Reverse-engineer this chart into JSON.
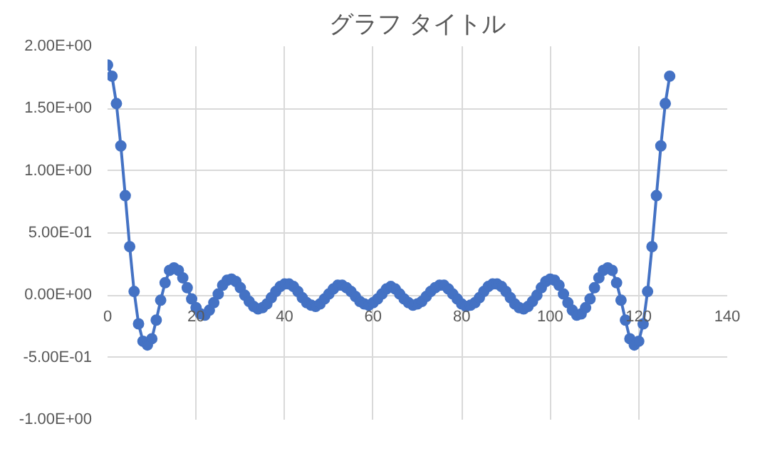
{
  "chart_data": {
    "type": "line",
    "title": "グラフ タイトル",
    "x": [
      0,
      1,
      2,
      3,
      4,
      5,
      6,
      7,
      8,
      9,
      10,
      11,
      12,
      13,
      14,
      15,
      16,
      17,
      18,
      19,
      20,
      21,
      22,
      23,
      24,
      25,
      26,
      27,
      28,
      29,
      30,
      31,
      32,
      33,
      34,
      35,
      36,
      37,
      38,
      39,
      40,
      41,
      42,
      43,
      44,
      45,
      46,
      47,
      48,
      49,
      50,
      51,
      52,
      53,
      54,
      55,
      56,
      57,
      58,
      59,
      60,
      61,
      62,
      63,
      64,
      65,
      66,
      67,
      68,
      69,
      70,
      71,
      72,
      73,
      74,
      75,
      76,
      77,
      78,
      79,
      80,
      81,
      82,
      83,
      84,
      85,
      86,
      87,
      88,
      89,
      90,
      91,
      92,
      93,
      94,
      95,
      96,
      97,
      98,
      99,
      100,
      101,
      102,
      103,
      104,
      105,
      106,
      107,
      108,
      109,
      110,
      111,
      112,
      113,
      114,
      115,
      116,
      117,
      118,
      119,
      120,
      121,
      122,
      123,
      124,
      125,
      126,
      127
    ],
    "series": [
      {
        "color": "#4472c4",
        "values": [
          1.85,
          1.76,
          1.54,
          1.2,
          0.8,
          0.39,
          0.03,
          -0.23,
          -0.37,
          -0.4,
          -0.35,
          -0.2,
          -0.04,
          0.1,
          0.2,
          0.22,
          0.2,
          0.14,
          0.06,
          -0.03,
          -0.1,
          -0.15,
          -0.16,
          -0.12,
          -0.06,
          0.01,
          0.08,
          0.12,
          0.13,
          0.11,
          0.06,
          0.0,
          -0.05,
          -0.09,
          -0.11,
          -0.1,
          -0.07,
          -0.02,
          0.03,
          0.07,
          0.09,
          0.09,
          0.07,
          0.03,
          -0.02,
          -0.06,
          -0.08,
          -0.09,
          -0.07,
          -0.03,
          0.01,
          0.05,
          0.08,
          0.08,
          0.06,
          0.03,
          -0.01,
          -0.05,
          -0.07,
          -0.08,
          -0.06,
          -0.03,
          0.01,
          0.05,
          0.07,
          0.05,
          0.01,
          -0.03,
          -0.06,
          -0.08,
          -0.07,
          -0.05,
          -0.01,
          0.03,
          0.06,
          0.08,
          0.08,
          0.05,
          0.01,
          -0.03,
          -0.07,
          -0.09,
          -0.08,
          -0.06,
          -0.02,
          0.03,
          0.07,
          0.09,
          0.09,
          0.07,
          0.03,
          -0.02,
          -0.07,
          -0.1,
          -0.11,
          -0.09,
          -0.05,
          0.0,
          0.06,
          0.11,
          0.13,
          0.12,
          0.08,
          0.01,
          -0.06,
          -0.12,
          -0.16,
          -0.15,
          -0.1,
          -0.03,
          0.06,
          0.14,
          0.2,
          0.22,
          0.2,
          0.1,
          -0.04,
          -0.2,
          -0.35,
          -0.4,
          -0.37,
          -0.23,
          0.03,
          0.39,
          0.8,
          1.2,
          1.54,
          1.76
        ]
      }
    ],
    "xlim": [
      0,
      140
    ],
    "xticks": [
      0,
      20,
      40,
      60,
      80,
      100,
      120,
      140
    ],
    "ylim": [
      -1,
      2
    ],
    "yticks": [
      {
        "value": -1,
        "label": "-1.00E+00"
      },
      {
        "value": -0.5,
        "label": "-5.00E-01"
      },
      {
        "value": 0,
        "label": "0.00E+00"
      },
      {
        "value": 0.5,
        "label": "5.00E-01"
      },
      {
        "value": 1,
        "label": "1.00E+00"
      },
      {
        "value": 1.5,
        "label": "1.50E+00"
      },
      {
        "value": 2,
        "label": "2.00E+00"
      }
    ],
    "grid": true,
    "marker": "circle",
    "line_style": "solid"
  }
}
